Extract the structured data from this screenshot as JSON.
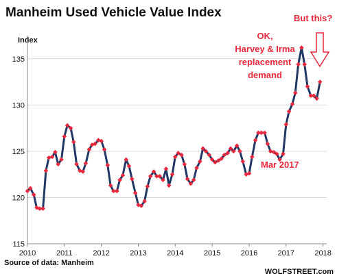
{
  "chart_data": {
    "type": "line",
    "title": "Manheim Used Vehicle Value Index",
    "ylabel": "Index",
    "xlabel": "",
    "ylim": [
      115,
      137.5
    ],
    "xlim": [
      2010,
      2018.1
    ],
    "yticks": [
      115,
      120,
      125,
      130,
      135
    ],
    "xticks": [
      2010,
      2011,
      2012,
      2013,
      2014,
      2015,
      2016,
      2017,
      2018
    ],
    "grid": "horizontal",
    "legend": "none",
    "line_color": "#1f3864",
    "marker_color": "#e8283c",
    "series": [
      {
        "values": [
          [
            2010.0,
            120.7
          ],
          [
            2010.08,
            121.0
          ],
          [
            2010.17,
            120.3
          ],
          [
            2010.25,
            118.9
          ],
          [
            2010.33,
            118.8
          ],
          [
            2010.42,
            118.8
          ],
          [
            2010.5,
            122.9
          ],
          [
            2010.58,
            124.3
          ],
          [
            2010.67,
            124.4
          ],
          [
            2010.75,
            124.9
          ],
          [
            2010.83,
            123.6
          ],
          [
            2010.92,
            124.1
          ],
          [
            2011.0,
            126.6
          ],
          [
            2011.08,
            127.8
          ],
          [
            2011.17,
            127.5
          ],
          [
            2011.25,
            126.0
          ],
          [
            2011.33,
            123.6
          ],
          [
            2011.42,
            122.9
          ],
          [
            2011.5,
            122.8
          ],
          [
            2011.58,
            123.7
          ],
          [
            2011.67,
            125.2
          ],
          [
            2011.75,
            125.7
          ],
          [
            2011.83,
            125.8
          ],
          [
            2011.92,
            126.2
          ],
          [
            2012.0,
            126.1
          ],
          [
            2012.08,
            125.2
          ],
          [
            2012.17,
            123.5
          ],
          [
            2012.25,
            121.3
          ],
          [
            2012.33,
            120.7
          ],
          [
            2012.42,
            120.7
          ],
          [
            2012.5,
            121.9
          ],
          [
            2012.58,
            122.4
          ],
          [
            2012.67,
            124.1
          ],
          [
            2012.75,
            123.4
          ],
          [
            2012.83,
            122.0
          ],
          [
            2012.92,
            120.5
          ],
          [
            2013.0,
            119.2
          ],
          [
            2013.08,
            119.1
          ],
          [
            2013.17,
            119.6
          ],
          [
            2013.25,
            121.2
          ],
          [
            2013.33,
            122.3
          ],
          [
            2013.42,
            122.8
          ],
          [
            2013.5,
            122.3
          ],
          [
            2013.58,
            122.3
          ],
          [
            2013.67,
            121.9
          ],
          [
            2013.75,
            123.1
          ],
          [
            2013.83,
            121.3
          ],
          [
            2013.92,
            122.5
          ],
          [
            2014.0,
            124.4
          ],
          [
            2014.08,
            124.8
          ],
          [
            2014.17,
            124.6
          ],
          [
            2014.25,
            123.6
          ],
          [
            2014.33,
            122.0
          ],
          [
            2014.42,
            121.5
          ],
          [
            2014.5,
            121.9
          ],
          [
            2014.58,
            123.2
          ],
          [
            2014.67,
            123.9
          ],
          [
            2014.75,
            125.3
          ],
          [
            2014.83,
            125.0
          ],
          [
            2014.92,
            124.6
          ],
          [
            2015.0,
            124.1
          ],
          [
            2015.08,
            123.8
          ],
          [
            2015.17,
            124.0
          ],
          [
            2015.25,
            124.2
          ],
          [
            2015.33,
            124.6
          ],
          [
            2015.42,
            124.8
          ],
          [
            2015.5,
            125.3
          ],
          [
            2015.58,
            125.0
          ],
          [
            2015.67,
            125.6
          ],
          [
            2015.75,
            125.0
          ],
          [
            2015.83,
            123.9
          ],
          [
            2015.92,
            122.5
          ],
          [
            2016.0,
            122.6
          ],
          [
            2016.08,
            124.4
          ],
          [
            2016.17,
            126.2
          ],
          [
            2016.25,
            127.0
          ],
          [
            2016.33,
            127.0
          ],
          [
            2016.42,
            127.0
          ],
          [
            2016.5,
            125.8
          ],
          [
            2016.58,
            125.0
          ],
          [
            2016.67,
            124.9
          ],
          [
            2016.75,
            124.7
          ],
          [
            2016.83,
            124.1
          ],
          [
            2016.92,
            124.7
          ],
          [
            2017.0,
            127.9
          ],
          [
            2017.08,
            129.3
          ],
          [
            2017.17,
            130.1
          ],
          [
            2017.25,
            131.3
          ],
          [
            2017.33,
            134.4
          ],
          [
            2017.42,
            136.2
          ],
          [
            2017.5,
            134.4
          ],
          [
            2017.58,
            132.0
          ],
          [
            2017.67,
            131.0
          ],
          [
            2017.75,
            131.0
          ],
          [
            2017.83,
            130.7
          ],
          [
            2017.92,
            132.5
          ]
        ]
      }
    ],
    "annotations": [
      {
        "lines": [
          "OK,",
          "Harvey & Irma",
          "replacement",
          "demand"
        ]
      },
      {
        "lines": [
          "But this?"
        ]
      },
      {
        "lines": [
          "Mar 2017"
        ]
      }
    ],
    "source": "Source of data: Manheim",
    "brand": "WOLFSTREET.com"
  }
}
